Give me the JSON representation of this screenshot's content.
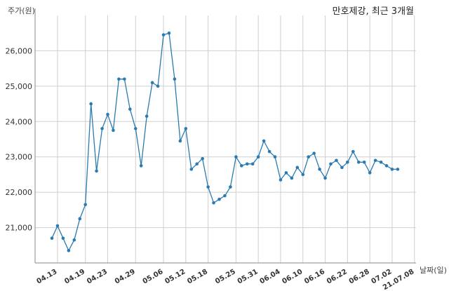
{
  "chart_data": {
    "type": "line",
    "title": "만호제강, 최근 3개월",
    "ylabel": "주가(원)",
    "xlabel": "날짜(일)",
    "ylim": [
      20000,
      27000
    ],
    "grid": true,
    "line_color": "#2b7bb0",
    "y_ticks": [
      21000,
      22000,
      23000,
      24000,
      25000,
      26000
    ],
    "y_tick_labels": [
      "21,000",
      "22,000",
      "23,000",
      "24,000",
      "25,000",
      "26,000"
    ],
    "x_tick_labels": [
      "04.13",
      "04.19",
      "04.23",
      "04.29",
      "05.06",
      "05.12",
      "05.18",
      "05.25",
      "05.31",
      "06.04",
      "06.10",
      "06.16",
      "06.22",
      "06.28",
      "07.02",
      "21.07.08"
    ],
    "x_tick_index": [
      1,
      6,
      10,
      15,
      20,
      24,
      28,
      33,
      37,
      41,
      45,
      49,
      53,
      57,
      61,
      65
    ],
    "values": [
      20700,
      21050,
      20700,
      20350,
      20650,
      21250,
      21650,
      24500,
      22600,
      23800,
      24200,
      23750,
      25200,
      25200,
      24350,
      23800,
      22750,
      24150,
      25100,
      25000,
      26450,
      26500,
      25200,
      23450,
      23800,
      22650,
      22800,
      22950,
      22150,
      21700,
      21800,
      21900,
      22150,
      23000,
      22750,
      22800,
      22800,
      23000,
      23450,
      23150,
      23000,
      22350,
      22550,
      22400,
      22700,
      22500,
      23000,
      23100,
      22650,
      22400,
      22800,
      22900,
      22700,
      22850,
      23150,
      22850,
      22850,
      22550,
      22900,
      22850,
      22750,
      22650,
      22650
    ]
  }
}
